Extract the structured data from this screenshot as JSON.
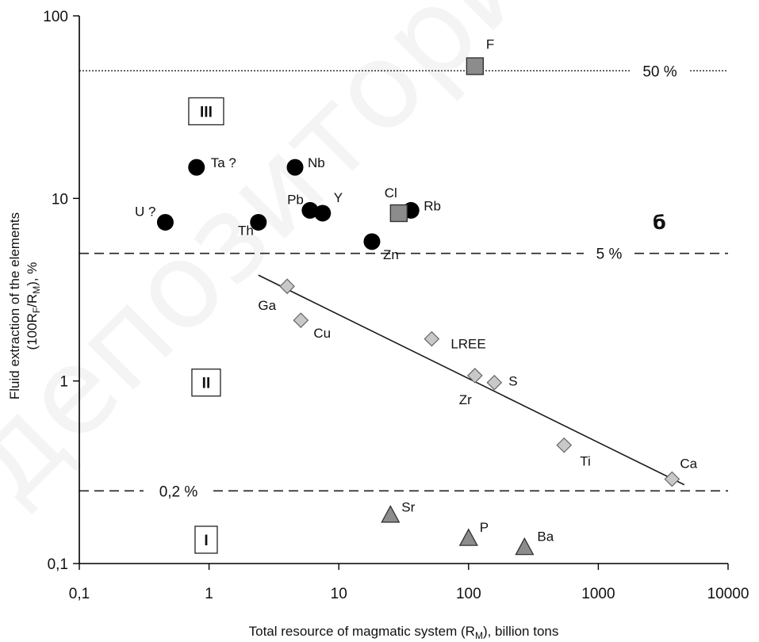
{
  "chart_data": {
    "type": "scatter",
    "title": "",
    "xlabel": "Total resource of magmatic system (R",
    "xlabel_sub": "M",
    "xlabel_tail": "), billion tons",
    "ylabel_line1": "Fluid extraction of the elements",
    "ylabel_line2_parts": [
      "(100R",
      "F",
      "/R",
      "M",
      "), %"
    ],
    "x_scale": "log",
    "y_scale": "log",
    "xlim": [
      0.1,
      10000
    ],
    "ylim": [
      0.1,
      100
    ],
    "x_ticks": [
      0.1,
      1,
      10,
      100,
      1000,
      10000
    ],
    "x_tick_labels": [
      "0,1",
      "1",
      "10",
      "100",
      "1000",
      "10000"
    ],
    "y_ticks": [
      0.1,
      1,
      10,
      100
    ],
    "y_tick_labels": [
      "0,1",
      "1",
      "10",
      "100"
    ],
    "grid": false,
    "panel_label": "б",
    "reference_lines": [
      {
        "y": 50,
        "label": "50 %",
        "style": "dotted"
      },
      {
        "y": 5,
        "label": "5 %",
        "style": "dashed"
      },
      {
        "y": 0.25,
        "label": "0,2 %",
        "style": "dashed"
      }
    ],
    "regions": [
      {
        "label": "III",
        "x": 0.95,
        "y": 30
      },
      {
        "label": "II",
        "x": 0.95,
        "y": 0.98
      },
      {
        "label": "I",
        "x": 0.95,
        "y": 0.135
      }
    ],
    "trendline": {
      "x": [
        2.4,
        4600
      ],
      "y": [
        3.8,
        0.27
      ]
    },
    "series": [
      {
        "marker": "circle",
        "color": "#000000",
        "points": [
          {
            "label": "Ta ?",
            "x": 0.8,
            "y": 14.8
          },
          {
            "label": "Nb",
            "x": 4.6,
            "y": 14.8
          },
          {
            "label": "U ?",
            "x": 0.46,
            "y": 7.4
          },
          {
            "label": "Th",
            "x": 2.4,
            "y": 7.4
          },
          {
            "label": "Pb",
            "x": 6.0,
            "y": 8.6
          },
          {
            "label": "Y",
            "x": 7.5,
            "y": 8.3
          },
          {
            "label": "Rb",
            "x": 36,
            "y": 8.6
          },
          {
            "label": "Zn",
            "x": 18,
            "y": 5.8
          }
        ]
      },
      {
        "marker": "square",
        "color": "#8c8c8c",
        "points": [
          {
            "label": "F",
            "x": 112,
            "y": 53
          },
          {
            "label": "Cl",
            "x": 29,
            "y": 8.3
          }
        ]
      },
      {
        "marker": "diamond",
        "color": "#c8c8c8",
        "points": [
          {
            "label": "Ga",
            "x": 4.0,
            "y": 3.3
          },
          {
            "label": "Cu",
            "x": 5.1,
            "y": 2.15
          },
          {
            "label": "LREE",
            "x": 52,
            "y": 1.7
          },
          {
            "label": "Zr",
            "x": 112,
            "y": 1.07
          },
          {
            "label": "S",
            "x": 158,
            "y": 0.98
          },
          {
            "label": "Ti",
            "x": 545,
            "y": 0.445
          },
          {
            "label": "Ca",
            "x": 3700,
            "y": 0.29
          }
        ]
      },
      {
        "marker": "triangle",
        "color": "#8c8c8c",
        "points": [
          {
            "label": "Sr",
            "x": 25,
            "y": 0.185
          },
          {
            "label": "P",
            "x": 100,
            "y": 0.138
          },
          {
            "label": "Ba",
            "x": 270,
            "y": 0.123
          }
        ]
      }
    ],
    "watermark": "депозитори"
  }
}
